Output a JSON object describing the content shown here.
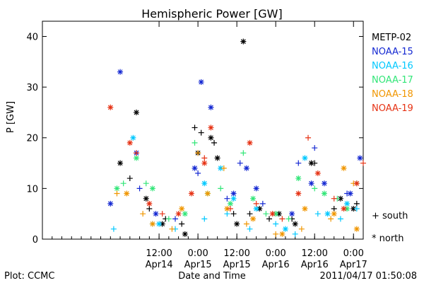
{
  "chart_data": {
    "type": "scatter",
    "title": "Hemispheric Power [GW]",
    "xlabel": "Date and Time",
    "ylabel": "P [GW]",
    "xlim": [
      "2011-04-13T00:00",
      "2011-04-17T03:00"
    ],
    "ylim": [
      0,
      43
    ],
    "yticks": [
      0,
      10,
      20,
      30,
      40
    ],
    "xticks": [
      {
        "line1": "12:00",
        "line2": "Apr14",
        "t": "2011-04-14T12:00"
      },
      {
        "line1": "0:00",
        "line2": "Apr15",
        "t": "2011-04-15T00:00"
      },
      {
        "line1": "12:00",
        "line2": "Apr15",
        "t": "2011-04-15T12:00"
      },
      {
        "line1": "0:00",
        "line2": "Apr16",
        "t": "2011-04-16T00:00"
      },
      {
        "line1": "12:00",
        "line2": "Apr16",
        "t": "2011-04-16T12:00"
      },
      {
        "line1": "0:00",
        "line2": "Apr17",
        "t": "2011-04-17T00:00"
      }
    ],
    "legend_placement": "right",
    "symbol_legend": {
      "south": "+ south",
      "north": "* north"
    },
    "series": [
      {
        "name": "METP-02",
        "color": "#000000",
        "south": [
          [
            "2011-04-14T03:00",
            12
          ],
          [
            "2011-04-14T09:00",
            6
          ],
          [
            "2011-04-14T14:00",
            4
          ],
          [
            "2011-04-14T19:00",
            3
          ],
          [
            "2011-04-14T23:00",
            22
          ],
          [
            "2011-04-15T01:00",
            21
          ],
          [
            "2011-04-15T05:00",
            19
          ],
          [
            "2011-04-15T11:00",
            5
          ],
          [
            "2011-04-15T16:00",
            5
          ],
          [
            "2011-04-15T22:00",
            4
          ],
          [
            "2011-04-16T05:00",
            4
          ],
          [
            "2011-04-16T12:00",
            15
          ],
          [
            "2011-04-16T18:00",
            6
          ],
          [
            "2011-04-17T01:00",
            7
          ]
        ],
        "north": [
          [
            "2011-04-14T00:00",
            15
          ],
          [
            "2011-04-14T05:00",
            25
          ],
          [
            "2011-04-14T08:00",
            8
          ],
          [
            "2011-04-14T13:00",
            3
          ],
          [
            "2011-04-14T20:00",
            1
          ],
          [
            "2011-04-15T00:00",
            17
          ],
          [
            "2011-04-15T04:00",
            20
          ],
          [
            "2011-04-15T06:00",
            16
          ],
          [
            "2011-04-15T12:00",
            3
          ],
          [
            "2011-04-15T14:00",
            39
          ],
          [
            "2011-04-15T19:00",
            6
          ],
          [
            "2011-04-16T01:00",
            5
          ],
          [
            "2011-04-16T06:00",
            3
          ],
          [
            "2011-04-16T11:00",
            15
          ],
          [
            "2011-04-16T20:00",
            8
          ],
          [
            "2011-04-17T00:00",
            6
          ]
        ]
      },
      {
        "name": "NOAA-15",
        "color": "#1428d2",
        "south": [
          [
            "2011-04-14T06:00",
            10
          ],
          [
            "2011-04-14T17:00",
            4
          ],
          [
            "2011-04-15T00:00",
            13
          ],
          [
            "2011-04-15T09:00",
            8
          ],
          [
            "2011-04-15T13:00",
            15
          ],
          [
            "2011-04-15T20:00",
            7
          ],
          [
            "2011-04-16T07:00",
            15
          ],
          [
            "2011-04-16T12:00",
            18
          ],
          [
            "2011-04-16T22:00",
            9
          ]
        ],
        "north": [
          [
            "2011-04-13T21:00",
            7
          ],
          [
            "2011-04-14T00:00",
            33
          ],
          [
            "2011-04-14T05:00",
            17
          ],
          [
            "2011-04-14T11:00",
            5
          ],
          [
            "2011-04-14T23:00",
            14
          ],
          [
            "2011-04-15T01:00",
            31
          ],
          [
            "2011-04-15T04:00",
            26
          ],
          [
            "2011-04-15T11:00",
            9
          ],
          [
            "2011-04-15T15:00",
            14
          ],
          [
            "2011-04-15T18:00",
            10
          ],
          [
            "2011-04-16T05:00",
            5
          ],
          [
            "2011-04-16T11:00",
            11
          ],
          [
            "2011-04-16T15:00",
            11
          ],
          [
            "2011-04-16T23:00",
            9
          ],
          [
            "2011-04-17T02:00",
            16
          ]
        ]
      },
      {
        "name": "NOAA-16",
        "color": "#00c8ff",
        "south": [
          [
            "2011-04-13T22:00",
            2
          ],
          [
            "2011-04-14T10:00",
            3
          ],
          [
            "2011-04-14T17:00",
            2
          ],
          [
            "2011-04-15T02:00",
            4
          ],
          [
            "2011-04-15T09:00",
            5
          ],
          [
            "2011-04-15T16:00",
            2
          ],
          [
            "2011-04-16T00:00",
            3
          ],
          [
            "2011-04-16T06:00",
            1
          ],
          [
            "2011-04-16T13:00",
            5
          ],
          [
            "2011-04-16T20:00",
            4
          ],
          [
            "2011-04-17T01:00",
            6
          ]
        ],
        "north": [
          [
            "2011-04-14T04:00",
            20
          ],
          [
            "2011-04-14T12:00",
            3
          ],
          [
            "2011-04-15T02:00",
            11
          ],
          [
            "2011-04-15T07:00",
            14
          ],
          [
            "2011-04-15T11:00",
            8
          ],
          [
            "2011-04-15T18:00",
            6
          ],
          [
            "2011-04-16T03:00",
            2
          ],
          [
            "2011-04-16T09:00",
            16
          ],
          [
            "2011-04-16T16:00",
            5
          ],
          [
            "2011-04-16T22:00",
            7
          ]
        ]
      },
      {
        "name": "NOAA-17",
        "color": "#32e678",
        "south": [
          [
            "2011-04-14T01:00",
            11
          ],
          [
            "2011-04-14T08:00",
            11
          ],
          [
            "2011-04-14T15:00",
            4
          ],
          [
            "2011-04-14T23:00",
            19
          ],
          [
            "2011-04-15T07:00",
            10
          ],
          [
            "2011-04-15T14:00",
            17
          ],
          [
            "2011-04-15T21:00",
            5
          ],
          [
            "2011-04-16T04:00",
            4
          ],
          [
            "2011-04-16T12:00",
            10
          ],
          [
            "2011-04-16T19:00",
            8
          ],
          [
            "2011-04-17T01:00",
            11
          ]
        ],
        "north": [
          [
            "2011-04-13T23:00",
            10
          ],
          [
            "2011-04-14T05:00",
            16
          ],
          [
            "2011-04-14T10:00",
            10
          ],
          [
            "2011-04-14T20:00",
            5
          ],
          [
            "2011-04-15T03:00",
            9
          ],
          [
            "2011-04-15T10:00",
            7
          ],
          [
            "2011-04-15T17:00",
            8
          ],
          [
            "2011-04-16T00:00",
            5
          ],
          [
            "2011-04-16T07:00",
            12
          ],
          [
            "2011-04-16T15:00",
            9
          ],
          [
            "2011-04-16T22:00",
            6
          ]
        ]
      },
      {
        "name": "NOAA-18",
        "color": "#f09600",
        "south": [
          [
            "2011-04-13T23:00",
            9
          ],
          [
            "2011-04-14T07:00",
            5
          ],
          [
            "2011-04-14T16:00",
            2
          ],
          [
            "2011-04-15T00:00",
            17
          ],
          [
            "2011-04-15T08:00",
            14
          ],
          [
            "2011-04-15T15:00",
            3
          ],
          [
            "2011-04-16T00:00",
            1
          ],
          [
            "2011-04-16T08:00",
            2
          ],
          [
            "2011-04-16T17:00",
            4
          ],
          [
            "2011-04-17T00:00",
            11
          ]
        ],
        "north": [
          [
            "2011-04-14T02:00",
            9
          ],
          [
            "2011-04-14T10:00",
            3
          ],
          [
            "2011-04-14T19:00",
            6
          ],
          [
            "2011-04-15T03:00",
            9
          ],
          [
            "2011-04-15T09:00",
            6
          ],
          [
            "2011-04-15T17:00",
            4
          ],
          [
            "2011-04-16T02:00",
            1
          ],
          [
            "2011-04-16T09:00",
            6
          ],
          [
            "2011-04-16T18:00",
            5
          ],
          [
            "2011-04-16T21:00",
            14
          ],
          [
            "2011-04-17T01:00",
            2
          ]
        ]
      },
      {
        "name": "NOAA-19",
        "color": "#e63214",
        "south": [
          [
            "2011-04-14T05:00",
            17
          ],
          [
            "2011-04-14T13:00",
            5
          ],
          [
            "2011-04-15T02:00",
            16
          ],
          [
            "2011-04-15T10:00",
            6
          ],
          [
            "2011-04-15T18:00",
            7
          ],
          [
            "2011-04-16T02:00",
            4
          ],
          [
            "2011-04-16T10:00",
            20
          ],
          [
            "2011-04-16T18:00",
            8
          ],
          [
            "2011-04-17T03:00",
            15
          ]
        ],
        "north": [
          [
            "2011-04-13T21:00",
            26
          ],
          [
            "2011-04-14T03:00",
            19
          ],
          [
            "2011-04-14T09:00",
            7
          ],
          [
            "2011-04-14T18:00",
            5
          ],
          [
            "2011-04-14T22:00",
            9
          ],
          [
            "2011-04-15T02:00",
            15
          ],
          [
            "2011-04-15T04:00",
            22
          ],
          [
            "2011-04-15T16:00",
            19
          ],
          [
            "2011-04-15T23:00",
            5
          ],
          [
            "2011-04-16T07:00",
            9
          ],
          [
            "2011-04-16T13:00",
            13
          ],
          [
            "2011-04-16T21:00",
            6
          ],
          [
            "2011-04-17T01:00",
            11
          ]
        ]
      }
    ]
  },
  "footer": {
    "left": "Plot: CCMC",
    "right": "2011/04/17 01:50:08"
  }
}
